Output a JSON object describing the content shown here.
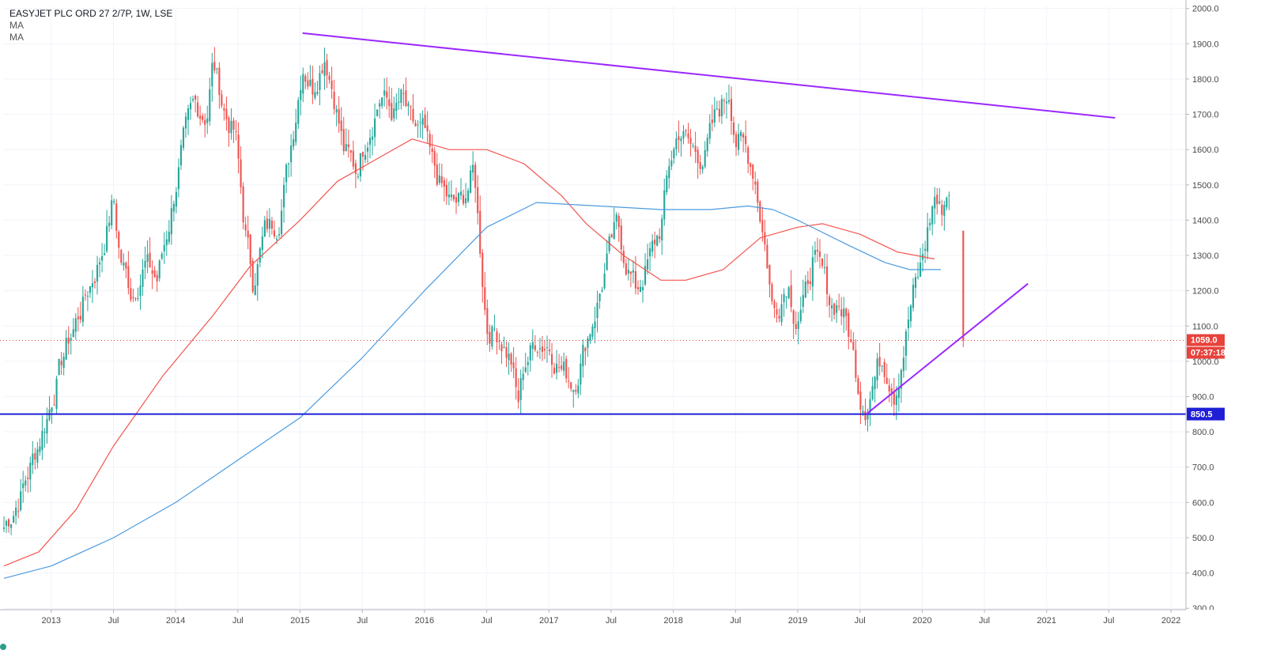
{
  "header": {
    "title": "EASYJET PLC ORD 27 2/7P, 1W, LSE",
    "indicator_1": "MA",
    "indicator_2": "MA"
  },
  "price_labels": {
    "last_price": "1059.0",
    "countdown": "07:37:18",
    "level": "850.5"
  },
  "colors": {
    "up": "#26a69a",
    "down": "#ef5350",
    "ma_fast": "#f2554f",
    "ma_slow": "#4c9be0",
    "trendline": "#9c27ff",
    "support": "#1f1fd6",
    "last_price_line": "#e8423b",
    "grid": "#f0f3fa"
  },
  "icons": {
    "bottom_marker": "dot-icon"
  },
  "chart_data": {
    "type": "candlestick",
    "x_axis": {
      "ticks": [
        "2013",
        "Jul",
        "2014",
        "Jul",
        "2015",
        "Jul",
        "2016",
        "Jul",
        "2017",
        "Jul",
        "2018",
        "Jul",
        "2019",
        "Jul",
        "2020",
        "Jul",
        "2021",
        "Jul",
        "2022"
      ],
      "tick_dates": [
        2013.0,
        2013.5,
        2014.0,
        2014.5,
        2015.0,
        2015.5,
        2016.0,
        2016.5,
        2017.0,
        2017.5,
        2018.0,
        2018.5,
        2019.0,
        2019.5,
        2020.0,
        2020.5,
        2021.0,
        2021.5,
        2022.0
      ],
      "range": [
        2012.62,
        2022.12
      ]
    },
    "y_axis": {
      "ticks": [
        "2000.0",
        "1900.0",
        "1800.0",
        "1700.0",
        "1600.0",
        "1500.0",
        "1400.0",
        "1300.0",
        "1200.0",
        "1100.0",
        "1000.0",
        "900.0",
        "800.0",
        "700.0",
        "600.0",
        "500.0",
        "400.0",
        "300.0"
      ],
      "range": [
        296,
        2006
      ],
      "position": "right"
    },
    "grid": true,
    "price_path": [
      [
        2012.62,
        530
      ],
      [
        2012.75,
        620
      ],
      [
        2012.85,
        720
      ],
      [
        2012.97,
        850
      ],
      [
        2013.1,
        1020
      ],
      [
        2013.25,
        1160
      ],
      [
        2013.4,
        1300
      ],
      [
        2013.5,
        1460
      ],
      [
        2013.55,
        1300
      ],
      [
        2013.65,
        1190
      ],
      [
        2013.75,
        1280
      ],
      [
        2013.85,
        1230
      ],
      [
        2013.95,
        1400
      ],
      [
        2014.05,
        1600
      ],
      [
        2014.15,
        1720
      ],
      [
        2014.25,
        1700
      ],
      [
        2014.3,
        1850
      ],
      [
        2014.4,
        1700
      ],
      [
        2014.48,
        1640
      ],
      [
        2014.55,
        1390
      ],
      [
        2014.62,
        1230
      ],
      [
        2014.72,
        1370
      ],
      [
        2014.82,
        1400
      ],
      [
        2014.9,
        1550
      ],
      [
        2014.97,
        1720
      ],
      [
        2015.02,
        1850
      ],
      [
        2015.1,
        1780
      ],
      [
        2015.2,
        1880
      ],
      [
        2015.28,
        1750
      ],
      [
        2015.35,
        1600
      ],
      [
        2015.45,
        1540
      ],
      [
        2015.55,
        1660
      ],
      [
        2015.65,
        1760
      ],
      [
        2015.75,
        1700
      ],
      [
        2015.82,
        1740
      ],
      [
        2015.9,
        1660
      ],
      [
        2016.0,
        1640
      ],
      [
        2016.05,
        1560
      ],
      [
        2016.15,
        1480
      ],
      [
        2016.22,
        1440
      ],
      [
        2016.3,
        1450
      ],
      [
        2016.4,
        1540
      ],
      [
        2016.45,
        1310
      ],
      [
        2016.5,
        1100
      ],
      [
        2016.6,
        1080
      ],
      [
        2016.7,
        1000
      ],
      [
        2016.75,
        870
      ],
      [
        2016.8,
        990
      ],
      [
        2016.9,
        1060
      ],
      [
        2017.0,
        1050
      ],
      [
        2017.1,
        980
      ],
      [
        2017.2,
        940
      ],
      [
        2017.3,
        1060
      ],
      [
        2017.4,
        1180
      ],
      [
        2017.5,
        1330
      ],
      [
        2017.55,
        1380
      ],
      [
        2017.6,
        1310
      ],
      [
        2017.7,
        1200
      ],
      [
        2017.8,
        1280
      ],
      [
        2017.9,
        1380
      ],
      [
        2017.97,
        1560
      ],
      [
        2018.05,
        1660
      ],
      [
        2018.15,
        1600
      ],
      [
        2018.25,
        1580
      ],
      [
        2018.35,
        1700
      ],
      [
        2018.45,
        1770
      ],
      [
        2018.5,
        1640
      ],
      [
        2018.58,
        1600
      ],
      [
        2018.65,
        1540
      ],
      [
        2018.7,
        1420
      ],
      [
        2018.75,
        1300
      ],
      [
        2018.8,
        1140
      ],
      [
        2018.85,
        1170
      ],
      [
        2018.92,
        1240
      ],
      [
        2018.98,
        1130
      ],
      [
        2019.05,
        1160
      ],
      [
        2019.12,
        1290
      ],
      [
        2019.2,
        1240
      ],
      [
        2019.27,
        1160
      ],
      [
        2019.33,
        1170
      ],
      [
        2019.4,
        1100
      ],
      [
        2019.45,
        1010
      ],
      [
        2019.5,
        910
      ],
      [
        2019.55,
        880
      ],
      [
        2019.6,
        940
      ],
      [
        2019.67,
        1010
      ],
      [
        2019.72,
        980
      ],
      [
        2019.78,
        920
      ],
      [
        2019.85,
        1040
      ],
      [
        2019.92,
        1180
      ],
      [
        2019.98,
        1250
      ],
      [
        2020.05,
        1380
      ],
      [
        2020.1,
        1470
      ],
      [
        2020.15,
        1420
      ],
      [
        2020.22,
        1500
      ]
    ],
    "last_candle": {
      "date": 2020.33,
      "open": 1370,
      "high": 1370,
      "low": 1040,
      "close": 1059
    },
    "series": [
      {
        "points": [
          [
            2012.62,
            420
          ],
          [
            2012.9,
            460
          ],
          [
            2013.2,
            580
          ],
          [
            2013.5,
            760
          ],
          [
            2013.9,
            960
          ],
          [
            2014.3,
            1130
          ],
          [
            2014.6,
            1270
          ],
          [
            2015.0,
            1400
          ],
          [
            2015.3,
            1510
          ],
          [
            2015.6,
            1570
          ],
          [
            2015.9,
            1630
          ],
          [
            2016.2,
            1600
          ],
          [
            2016.5,
            1600
          ],
          [
            2016.8,
            1560
          ],
          [
            2017.1,
            1470
          ],
          [
            2017.3,
            1390
          ],
          [
            2017.6,
            1300
          ],
          [
            2017.9,
            1230
          ],
          [
            2018.1,
            1230
          ],
          [
            2018.4,
            1260
          ],
          [
            2018.7,
            1350
          ],
          [
            2019.0,
            1380
          ],
          [
            2019.2,
            1390
          ],
          [
            2019.5,
            1360
          ],
          [
            2019.8,
            1310
          ],
          [
            2020.1,
            1290
          ]
        ]
      },
      {
        "points": [
          [
            2012.62,
            385
          ],
          [
            2013.0,
            420
          ],
          [
            2013.5,
            500
          ],
          [
            2014.0,
            600
          ],
          [
            2014.5,
            720
          ],
          [
            2015.0,
            840
          ],
          [
            2015.5,
            1010
          ],
          [
            2016.0,
            1200
          ],
          [
            2016.5,
            1380
          ],
          [
            2016.9,
            1450
          ],
          [
            2017.4,
            1440
          ],
          [
            2017.9,
            1430
          ],
          [
            2018.3,
            1430
          ],
          [
            2018.6,
            1440
          ],
          [
            2018.8,
            1430
          ],
          [
            2019.0,
            1400
          ],
          [
            2019.4,
            1330
          ],
          [
            2019.7,
            1280
          ],
          [
            2019.9,
            1260
          ],
          [
            2020.15,
            1260
          ]
        ]
      }
    ],
    "trendlines": [
      {
        "from": [
          2015.02,
          1930
        ],
        "to": [
          2021.55,
          1690
        ]
      },
      {
        "from": [
          2019.55,
          850
        ],
        "to": [
          2020.85,
          1220
        ]
      }
    ],
    "horizontal_levels": [
      850.5,
      1059.0
    ]
  }
}
